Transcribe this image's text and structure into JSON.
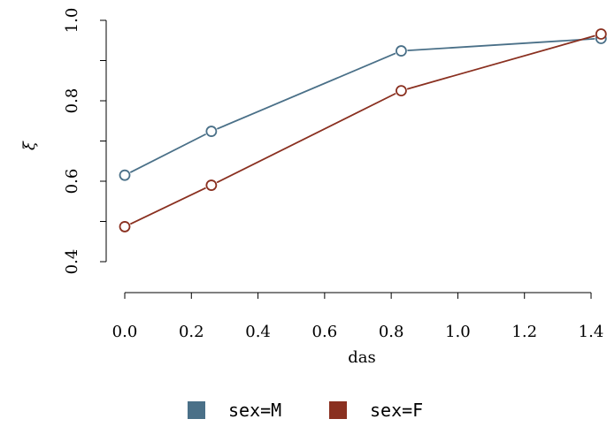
{
  "chart_data": {
    "type": "line",
    "x": [
      0.0,
      0.26,
      0.83,
      1.43
    ],
    "series": [
      {
        "name": "sex=M",
        "color": "#4a7088",
        "values": [
          0.615,
          0.724,
          0.924,
          0.955
        ]
      },
      {
        "name": "sex=F",
        "color": "#8a3020",
        "values": [
          0.487,
          0.59,
          0.825,
          0.966
        ]
      }
    ],
    "xlabel": "das",
    "ylabel": "ξ",
    "xlim": [
      0.0,
      1.4
    ],
    "ylim": [
      0.4,
      1.0
    ],
    "xticks": [
      "0.0",
      "0.2",
      "0.4",
      "0.6",
      "0.8",
      "1.0",
      "1.2",
      "1.4"
    ],
    "xtick_values": [
      0.0,
      0.2,
      0.4,
      0.6,
      0.8,
      1.0,
      1.2,
      1.4
    ],
    "yticks": [
      "0.4",
      "0.6",
      "0.8",
      "1.0"
    ],
    "ytick_values": [
      0.4,
      0.6,
      0.8,
      1.0
    ],
    "yminor_values": [
      0.5,
      0.7,
      0.9
    ],
    "legend_position": "bottom",
    "grid": false
  }
}
